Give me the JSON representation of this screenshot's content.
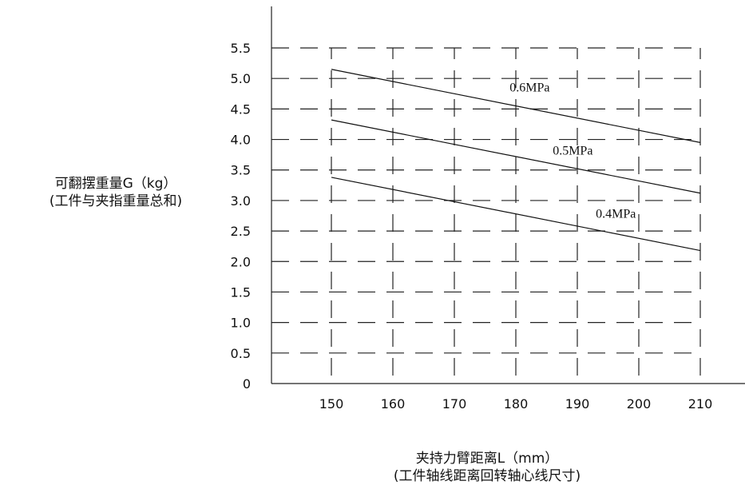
{
  "chart_data": {
    "type": "line",
    "ylabel": "可翻摆重量G（kg）",
    "ylabel_sub": "(工件与夹指重量总和)",
    "xlabel": "夹持力臂距离L（mm）",
    "xlabel_sub": "(工件轴线距离回转轴心线尺寸)",
    "xlim": [
      140,
      220
    ],
    "ylim": [
      0,
      5.5
    ],
    "x_ticks": [
      "150",
      "160",
      "170",
      "180",
      "190",
      "200",
      "210"
    ],
    "y_ticks": [
      "0",
      "0.5",
      "1.0",
      "1.5",
      "2.0",
      "2.5",
      "3.0",
      "3.5",
      "4.0",
      "4.5",
      "5.0",
      "5.5"
    ],
    "grid": "dashed",
    "series": [
      {
        "name": "0.6MPa",
        "x": [
          150,
          210
        ],
        "y": [
          5.15,
          3.95
        ],
        "label_at": [
          179,
          4.85
        ]
      },
      {
        "name": "0.5MPa",
        "x": [
          150,
          210
        ],
        "y": [
          4.32,
          3.12
        ],
        "label_at": [
          186,
          3.82
        ]
      },
      {
        "name": "0.4MPa",
        "x": [
          150,
          210
        ],
        "y": [
          3.38,
          2.18
        ],
        "label_at": [
          193,
          2.78
        ]
      }
    ]
  }
}
